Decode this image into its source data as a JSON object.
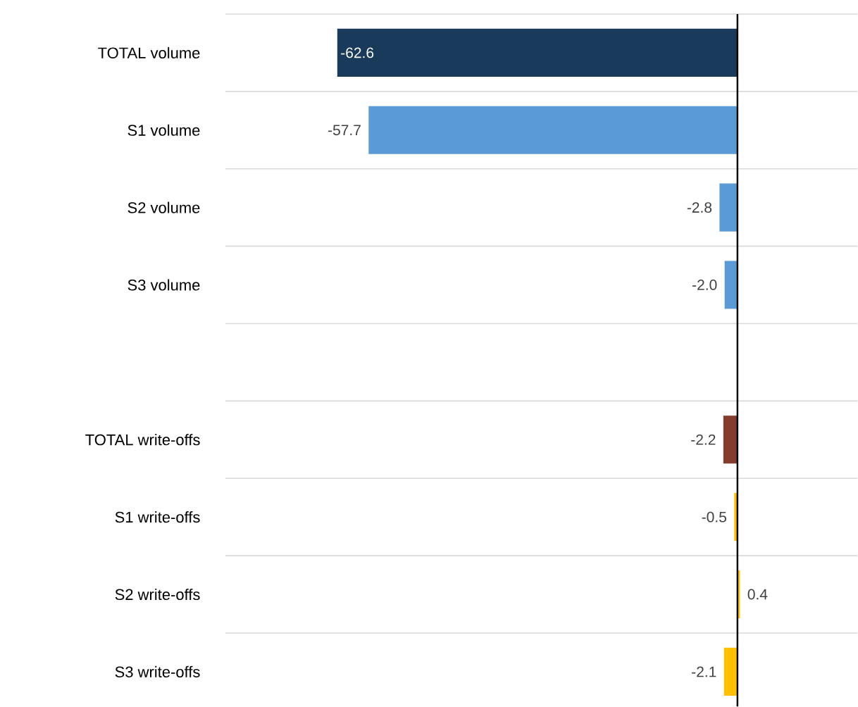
{
  "chart_data": {
    "type": "bar",
    "orientation": "horizontal",
    "categories": [
      "TOTAL volume",
      "S1 volume",
      "S2 volume",
      "S3 volume",
      null,
      "TOTAL write-offs",
      "S1 write-offs",
      "S2 write-offs",
      "S3 write-offs"
    ],
    "values": [
      -62.6,
      -57.7,
      -2.8,
      -2.0,
      null,
      -2.2,
      -0.5,
      0.4,
      -2.1
    ],
    "colors": [
      "#1a3a5c",
      "#5b9bd5",
      "#5b9bd5",
      "#5b9bd5",
      null,
      "#843c2c",
      "#ffc000",
      "#ffc000",
      "#ffc000"
    ],
    "value_labels": [
      "-62.6",
      "-57.7",
      "-2.8",
      "-2.0",
      null,
      "-2.2",
      "-0.5",
      "0.4",
      "-2.1"
    ],
    "grid": "y"
  }
}
